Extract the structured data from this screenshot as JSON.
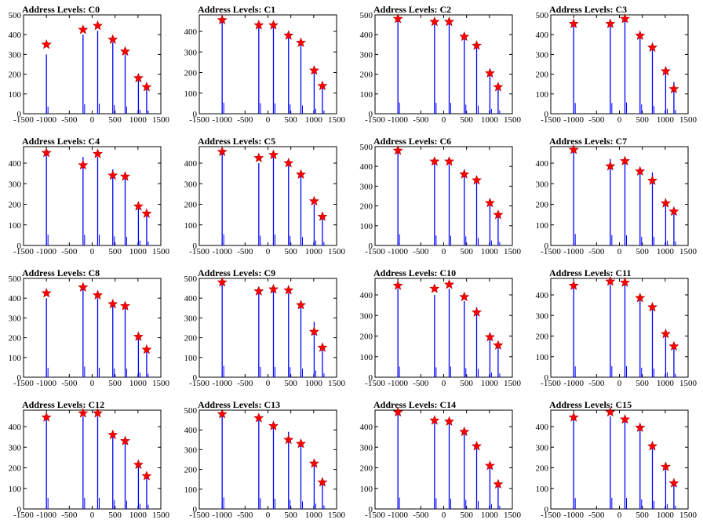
{
  "colors": {
    "line": "#0000ff",
    "marker": "#ff0000",
    "axis": "#000000",
    "background": "#ffffff"
  },
  "chart_data": [
    {
      "type": "bar",
      "title": "Address Levels: C0",
      "xlim": [
        -1500,
        1500
      ],
      "ylim": [
        0,
        500
      ],
      "xticks": [
        "-1500",
        "-1000",
        "-500",
        "0",
        "500",
        "1000",
        "1500"
      ],
      "yticks": [
        "0",
        "100",
        "200",
        "300",
        "400",
        "500"
      ],
      "peaks": [
        [
          -1000,
          300
        ],
        [
          -200,
          400
        ],
        [
          120,
          420
        ],
        [
          450,
          360
        ],
        [
          720,
          300
        ],
        [
          1010,
          170
        ],
        [
          1190,
          130
        ]
      ],
      "markers": [
        [
          -1000,
          350
        ],
        [
          -200,
          425
        ],
        [
          120,
          445
        ],
        [
          450,
          375
        ],
        [
          720,
          315
        ],
        [
          1010,
          180
        ],
        [
          1190,
          135
        ]
      ]
    },
    {
      "type": "bar",
      "title": "Address Levels: C1",
      "xlim": [
        -1500,
        1500
      ],
      "ylim": [
        0,
        480
      ],
      "xticks": [
        "-1500",
        "-1000",
        "-500",
        "0",
        "500",
        "1000",
        "1500"
      ],
      "yticks": [
        "0",
        "100",
        "200",
        "300",
        "400"
      ],
      "peaks": [
        [
          -1000,
          445
        ],
        [
          -200,
          425
        ],
        [
          120,
          420
        ],
        [
          450,
          380
        ],
        [
          720,
          335
        ],
        [
          1010,
          205
        ],
        [
          1190,
          125
        ]
      ],
      "markers": [
        [
          -1000,
          455
        ],
        [
          -200,
          430
        ],
        [
          120,
          430
        ],
        [
          450,
          380
        ],
        [
          720,
          345
        ],
        [
          1010,
          210
        ],
        [
          1190,
          135
        ]
      ]
    },
    {
      "type": "bar",
      "title": "Address Levels: C2",
      "xlim": [
        -1500,
        1500
      ],
      "ylim": [
        0,
        500
      ],
      "xticks": [
        "-1500",
        "-1000",
        "-500",
        "0",
        "500",
        "1000",
        "1500"
      ],
      "yticks": [
        "0",
        "100",
        "200",
        "300",
        "400",
        "500"
      ],
      "peaks": [
        [
          -1000,
          470
        ],
        [
          -200,
          460
        ],
        [
          120,
          455
        ],
        [
          450,
          385
        ],
        [
          720,
          340
        ],
        [
          1010,
          200
        ],
        [
          1190,
          145
        ]
      ],
      "markers": [
        [
          -1000,
          480
        ],
        [
          -200,
          465
        ],
        [
          120,
          465
        ],
        [
          450,
          390
        ],
        [
          720,
          345
        ],
        [
          1010,
          205
        ],
        [
          1190,
          135
        ]
      ]
    },
    {
      "type": "bar",
      "title": "Address Levels: C3",
      "xlim": [
        -1500,
        1500
      ],
      "ylim": [
        0,
        500
      ],
      "xticks": [
        "-1500",
        "-1000",
        "-500",
        "0",
        "500",
        "1000",
        "1500"
      ],
      "yticks": [
        "0",
        "100",
        "200",
        "300",
        "400",
        "500"
      ],
      "peaks": [
        [
          -1000,
          450
        ],
        [
          -200,
          450
        ],
        [
          120,
          475
        ],
        [
          450,
          395
        ],
        [
          720,
          330
        ],
        [
          1010,
          210
        ],
        [
          1190,
          160
        ]
      ],
      "markers": [
        [
          -1000,
          455
        ],
        [
          -200,
          455
        ],
        [
          120,
          480
        ],
        [
          450,
          395
        ],
        [
          720,
          335
        ],
        [
          1010,
          215
        ],
        [
          1190,
          125
        ]
      ]
    },
    {
      "type": "bar",
      "title": "Address Levels: C4",
      "xlim": [
        -1500,
        1500
      ],
      "ylim": [
        0,
        480
      ],
      "xticks": [
        "-1500",
        "-1000",
        "-500",
        "0",
        "500",
        "1000",
        "1500"
      ],
      "yticks": [
        "0",
        "100",
        "200",
        "300",
        "400"
      ],
      "peaks": [
        [
          -1000,
          440
        ],
        [
          -200,
          430
        ],
        [
          120,
          430
        ],
        [
          450,
          370
        ],
        [
          720,
          350
        ],
        [
          1010,
          200
        ],
        [
          1190,
          155
        ]
      ],
      "markers": [
        [
          -1000,
          450
        ],
        [
          -200,
          390
        ],
        [
          120,
          445
        ],
        [
          450,
          340
        ],
        [
          720,
          335
        ],
        [
          1010,
          190
        ],
        [
          1190,
          155
        ]
      ]
    },
    {
      "type": "bar",
      "title": "Address Levels: C5",
      "xlim": [
        -1500,
        1500
      ],
      "ylim": [
        0,
        480
      ],
      "xticks": [
        "-1500",
        "-1000",
        "-500",
        "0",
        "500",
        "1000",
        "1500"
      ],
      "yticks": [
        "0",
        "100",
        "200",
        "300",
        "400"
      ],
      "peaks": [
        [
          -1000,
          450
        ],
        [
          -200,
          400
        ],
        [
          120,
          440
        ],
        [
          450,
          390
        ],
        [
          720,
          340
        ],
        [
          1010,
          200
        ],
        [
          1190,
          140
        ]
      ],
      "markers": [
        [
          -1000,
          455
        ],
        [
          -200,
          425
        ],
        [
          120,
          440
        ],
        [
          450,
          400
        ],
        [
          720,
          345
        ],
        [
          1010,
          215
        ],
        [
          1190,
          140
        ]
      ]
    },
    {
      "type": "bar",
      "title": "Address Levels: C6",
      "xlim": [
        -1500,
        1500
      ],
      "ylim": [
        0,
        500
      ],
      "xticks": [
        "-1500",
        "-1000",
        "-500",
        "0",
        "500",
        "1000",
        "1500"
      ],
      "yticks": [
        "0",
        "100",
        "200",
        "300",
        "400",
        "500"
      ],
      "peaks": [
        [
          -1000,
          470
        ],
        [
          -200,
          420
        ],
        [
          120,
          410
        ],
        [
          450,
          385
        ],
        [
          720,
          320
        ],
        [
          1010,
          210
        ],
        [
          1190,
          150
        ]
      ],
      "markers": [
        [
          -1000,
          480
        ],
        [
          -200,
          425
        ],
        [
          120,
          425
        ],
        [
          450,
          360
        ],
        [
          720,
          330
        ],
        [
          1010,
          215
        ],
        [
          1190,
          155
        ]
      ]
    },
    {
      "type": "bar",
      "title": "Address Levels: C7",
      "xlim": [
        -1500,
        1500
      ],
      "ylim": [
        0,
        480
      ],
      "xticks": [
        "-1500",
        "-1000",
        "-500",
        "0",
        "500",
        "1000",
        "1500"
      ],
      "yticks": [
        "0",
        "100",
        "200",
        "300",
        "400"
      ],
      "peaks": [
        [
          -1000,
          460
        ],
        [
          -200,
          420
        ],
        [
          120,
          410
        ],
        [
          450,
          355
        ],
        [
          720,
          355
        ],
        [
          1010,
          195
        ],
        [
          1190,
          165
        ]
      ],
      "markers": [
        [
          -1000,
          465
        ],
        [
          -200,
          385
        ],
        [
          120,
          410
        ],
        [
          450,
          360
        ],
        [
          720,
          315
        ],
        [
          1010,
          205
        ],
        [
          1190,
          165
        ]
      ]
    },
    {
      "type": "bar",
      "title": "Address Levels: C8",
      "xlim": [
        -1500,
        1500
      ],
      "ylim": [
        0,
        500
      ],
      "xticks": [
        "-1500",
        "-1000",
        "-500",
        "0",
        "500",
        "1000",
        "1500"
      ],
      "yticks": [
        "0",
        "100",
        "200",
        "300",
        "400",
        "500"
      ],
      "peaks": [
        [
          -1000,
          400
        ],
        [
          -200,
          450
        ],
        [
          120,
          400
        ],
        [
          450,
          370
        ],
        [
          720,
          360
        ],
        [
          1010,
          200
        ],
        [
          1190,
          140
        ]
      ],
      "markers": [
        [
          -1000,
          425
        ],
        [
          -200,
          455
        ],
        [
          120,
          415
        ],
        [
          450,
          370
        ],
        [
          720,
          360
        ],
        [
          1010,
          205
        ],
        [
          1190,
          140
        ]
      ]
    },
    {
      "type": "bar",
      "title": "Address Levels: C9",
      "xlim": [
        -1500,
        1500
      ],
      "ylim": [
        0,
        500
      ],
      "xticks": [
        "-1500",
        "-1000",
        "-500",
        "0",
        "500",
        "1000",
        "1500"
      ],
      "yticks": [
        "0",
        "100",
        "200",
        "300",
        "400",
        "500"
      ],
      "peaks": [
        [
          -1000,
          480
        ],
        [
          -200,
          440
        ],
        [
          120,
          440
        ],
        [
          450,
          425
        ],
        [
          720,
          360
        ],
        [
          1010,
          280
        ],
        [
          1190,
          160
        ]
      ],
      "markers": [
        [
          -1000,
          480
        ],
        [
          -200,
          435
        ],
        [
          120,
          445
        ],
        [
          450,
          440
        ],
        [
          720,
          365
        ],
        [
          1010,
          230
        ],
        [
          1190,
          150
        ]
      ]
    },
    {
      "type": "bar",
      "title": "Address Levels: C10",
      "xlim": [
        -1500,
        1500
      ],
      "ylim": [
        0,
        480
      ],
      "xticks": [
        "-1500",
        "-1000",
        "-500",
        "0",
        "500",
        "1000",
        "1500"
      ],
      "yticks": [
        "0",
        "100",
        "200",
        "300",
        "400"
      ],
      "peaks": [
        [
          -1000,
          430
        ],
        [
          -200,
          400
        ],
        [
          120,
          430
        ],
        [
          450,
          370
        ],
        [
          720,
          340
        ],
        [
          1010,
          190
        ],
        [
          1190,
          150
        ]
      ],
      "markers": [
        [
          -1000,
          445
        ],
        [
          -200,
          430
        ],
        [
          120,
          450
        ],
        [
          450,
          390
        ],
        [
          720,
          315
        ],
        [
          1010,
          195
        ],
        [
          1190,
          155
        ]
      ]
    },
    {
      "type": "bar",
      "title": "Address Levels: C11",
      "xlim": [
        -1500,
        1500
      ],
      "ylim": [
        0,
        480
      ],
      "xticks": [
        "-1500",
        "-1000",
        "-500",
        "0",
        "500",
        "1000",
        "1500"
      ],
      "yticks": [
        "0",
        "100",
        "200",
        "300",
        "400"
      ],
      "peaks": [
        [
          -1000,
          440
        ],
        [
          -200,
          450
        ],
        [
          120,
          450
        ],
        [
          450,
          385
        ],
        [
          720,
          345
        ],
        [
          1010,
          200
        ],
        [
          1190,
          140
        ]
      ],
      "markers": [
        [
          -1000,
          445
        ],
        [
          -200,
          465
        ],
        [
          120,
          460
        ],
        [
          450,
          385
        ],
        [
          720,
          340
        ],
        [
          1010,
          210
        ],
        [
          1190,
          150
        ]
      ]
    },
    {
      "type": "bar",
      "title": "Address Levels: C12",
      "xlim": [
        -1500,
        1500
      ],
      "ylim": [
        0,
        480
      ],
      "xticks": [
        "-1500",
        "-1000",
        "-500",
        "0",
        "500",
        "1000",
        "1500"
      ],
      "yticks": [
        "0",
        "100",
        "200",
        "300",
        "400"
      ],
      "peaks": [
        [
          -1000,
          440
        ],
        [
          -200,
          450
        ],
        [
          120,
          450
        ],
        [
          450,
          355
        ],
        [
          720,
          335
        ],
        [
          1010,
          210
        ],
        [
          1190,
          170
        ]
      ],
      "markers": [
        [
          -1000,
          445
        ],
        [
          -200,
          465
        ],
        [
          120,
          465
        ],
        [
          450,
          360
        ],
        [
          720,
          330
        ],
        [
          1010,
          215
        ],
        [
          1190,
          160
        ]
      ]
    },
    {
      "type": "bar",
      "title": "Address Levels: C13",
      "xlim": [
        -1500,
        1500
      ],
      "ylim": [
        0,
        500
      ],
      "xticks": [
        "-1500",
        "-1000",
        "-500",
        "0",
        "500",
        "1000",
        "1500"
      ],
      "yticks": [
        "0",
        "100",
        "200",
        "300",
        "400",
        "500"
      ],
      "peaks": [
        [
          -1000,
          480
        ],
        [
          -200,
          455
        ],
        [
          120,
          430
        ],
        [
          450,
          390
        ],
        [
          720,
          320
        ],
        [
          1010,
          225
        ],
        [
          1190,
          150
        ]
      ],
      "markers": [
        [
          -1000,
          480
        ],
        [
          -200,
          460
        ],
        [
          120,
          420
        ],
        [
          450,
          350
        ],
        [
          720,
          330
        ],
        [
          1010,
          230
        ],
        [
          1190,
          135
        ]
      ]
    },
    {
      "type": "bar",
      "title": "Address Levels: C14",
      "xlim": [
        -1500,
        1500
      ],
      "ylim": [
        0,
        480
      ],
      "xticks": [
        "-1500",
        "-1000",
        "-500",
        "0",
        "500",
        "1000",
        "1500"
      ],
      "yticks": [
        "0",
        "100",
        "200",
        "300",
        "400"
      ],
      "peaks": [
        [
          -1000,
          460
        ],
        [
          -200,
          430
        ],
        [
          120,
          420
        ],
        [
          450,
          370
        ],
        [
          720,
          320
        ],
        [
          1010,
          200
        ],
        [
          1190,
          130
        ]
      ],
      "markers": [
        [
          -1000,
          470
        ],
        [
          -200,
          430
        ],
        [
          120,
          425
        ],
        [
          450,
          375
        ],
        [
          720,
          305
        ],
        [
          1010,
          210
        ],
        [
          1190,
          120
        ]
      ]
    },
    {
      "type": "bar",
      "title": "Address Levels: C15",
      "xlim": [
        -1500,
        1500
      ],
      "ylim": [
        0,
        480
      ],
      "xticks": [
        "-1500",
        "-1000",
        "-500",
        "0",
        "500",
        "1000",
        "1500"
      ],
      "yticks": [
        "0",
        "100",
        "200",
        "300",
        "400"
      ],
      "peaks": [
        [
          -1000,
          440
        ],
        [
          -200,
          450
        ],
        [
          120,
          440
        ],
        [
          450,
          390
        ],
        [
          720,
          320
        ],
        [
          1010,
          200
        ],
        [
          1190,
          130
        ]
      ],
      "markers": [
        [
          -1000,
          445
        ],
        [
          -200,
          470
        ],
        [
          120,
          435
        ],
        [
          450,
          395
        ],
        [
          720,
          305
        ],
        [
          1010,
          205
        ],
        [
          1190,
          125
        ]
      ]
    }
  ]
}
